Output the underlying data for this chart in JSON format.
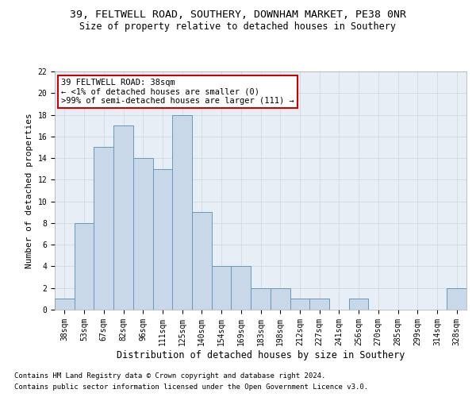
{
  "title_line1": "39, FELTWELL ROAD, SOUTHERY, DOWNHAM MARKET, PE38 0NR",
  "title_line2": "Size of property relative to detached houses in Southery",
  "xlabel": "Distribution of detached houses by size in Southery",
  "ylabel": "Number of detached properties",
  "categories": [
    "38sqm",
    "53sqm",
    "67sqm",
    "82sqm",
    "96sqm",
    "111sqm",
    "125sqm",
    "140sqm",
    "154sqm",
    "169sqm",
    "183sqm",
    "198sqm",
    "212sqm",
    "227sqm",
    "241sqm",
    "256sqm",
    "270sqm",
    "285sqm",
    "299sqm",
    "314sqm",
    "328sqm"
  ],
  "values": [
    1,
    8,
    15,
    17,
    14,
    13,
    18,
    9,
    4,
    4,
    2,
    2,
    1,
    1,
    0,
    1,
    0,
    0,
    0,
    0,
    2
  ],
  "bar_color": "#c8d8e8",
  "bar_edge_color": "#6699bb",
  "annotation_box_text": "39 FELTWELL ROAD: 38sqm\n← <1% of detached houses are smaller (0)\n>99% of semi-detached houses are larger (111) →",
  "annotation_box_color": "#ffffff",
  "annotation_box_edge_color": "#cc0000",
  "ylim": [
    0,
    22
  ],
  "yticks": [
    0,
    2,
    4,
    6,
    8,
    10,
    12,
    14,
    16,
    18,
    20,
    22
  ],
  "grid_color": "#d0d8e0",
  "bg_color": "#e8eef5",
  "footer_line1": "Contains HM Land Registry data © Crown copyright and database right 2024.",
  "footer_line2": "Contains public sector information licensed under the Open Government Licence v3.0.",
  "title_fontsize": 9.5,
  "subtitle_fontsize": 8.5,
  "tick_fontsize": 7,
  "ylabel_fontsize": 8,
  "xlabel_fontsize": 8.5,
  "annotation_fontsize": 7.5,
  "footer_fontsize": 6.5
}
